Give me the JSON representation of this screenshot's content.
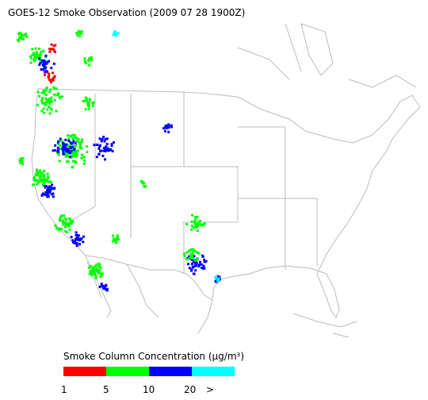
{
  "title": "GOES-12 Smoke Observation (2009 07 28  1900Z)",
  "legend": {
    "title": "Smoke Column Concentration (μg/m³)",
    "colors": [
      "#ff0000",
      "#00ff00",
      "#0000ff",
      "#00ffff"
    ],
    "ticks": [
      "1",
      "5",
      "10",
      "20",
      ">"
    ]
  }
}
